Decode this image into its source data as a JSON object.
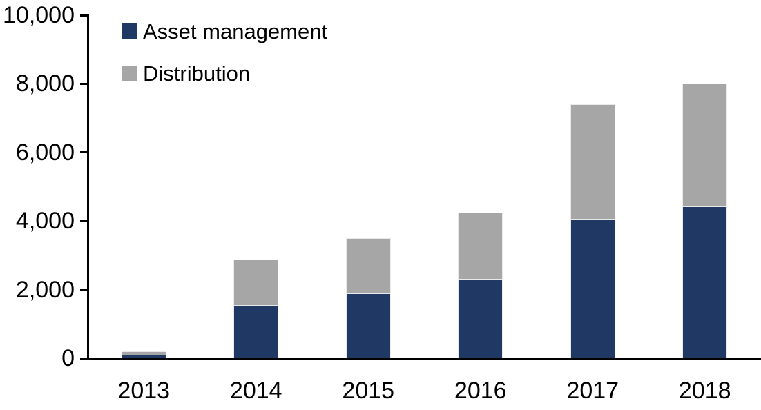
{
  "chart_data": {
    "type": "bar",
    "stacked": true,
    "title": "",
    "categories": [
      "2013",
      "2014",
      "2015",
      "2016",
      "2017",
      "2018"
    ],
    "series": [
      {
        "name": "Asset management",
        "color": "#1F3864",
        "values": [
          100,
          1550,
          1900,
          2320,
          4050,
          4430
        ]
      },
      {
        "name": "Distribution",
        "color": "#A6A6A6",
        "values": [
          100,
          1320,
          1600,
          1930,
          3350,
          3570
        ]
      }
    ],
    "totals": [
      200,
      2870,
      3500,
      4250,
      7400,
      8000
    ],
    "xlabel": "",
    "ylabel": "",
    "ylim": [
      0,
      10000
    ],
    "ytick_step": 2000,
    "ytick_labels": [
      "0",
      "2,000",
      "4,000",
      "6,000",
      "8,000",
      "10,000"
    ],
    "legend_position": "top-left",
    "grid": false,
    "axis_color": "#000000"
  }
}
